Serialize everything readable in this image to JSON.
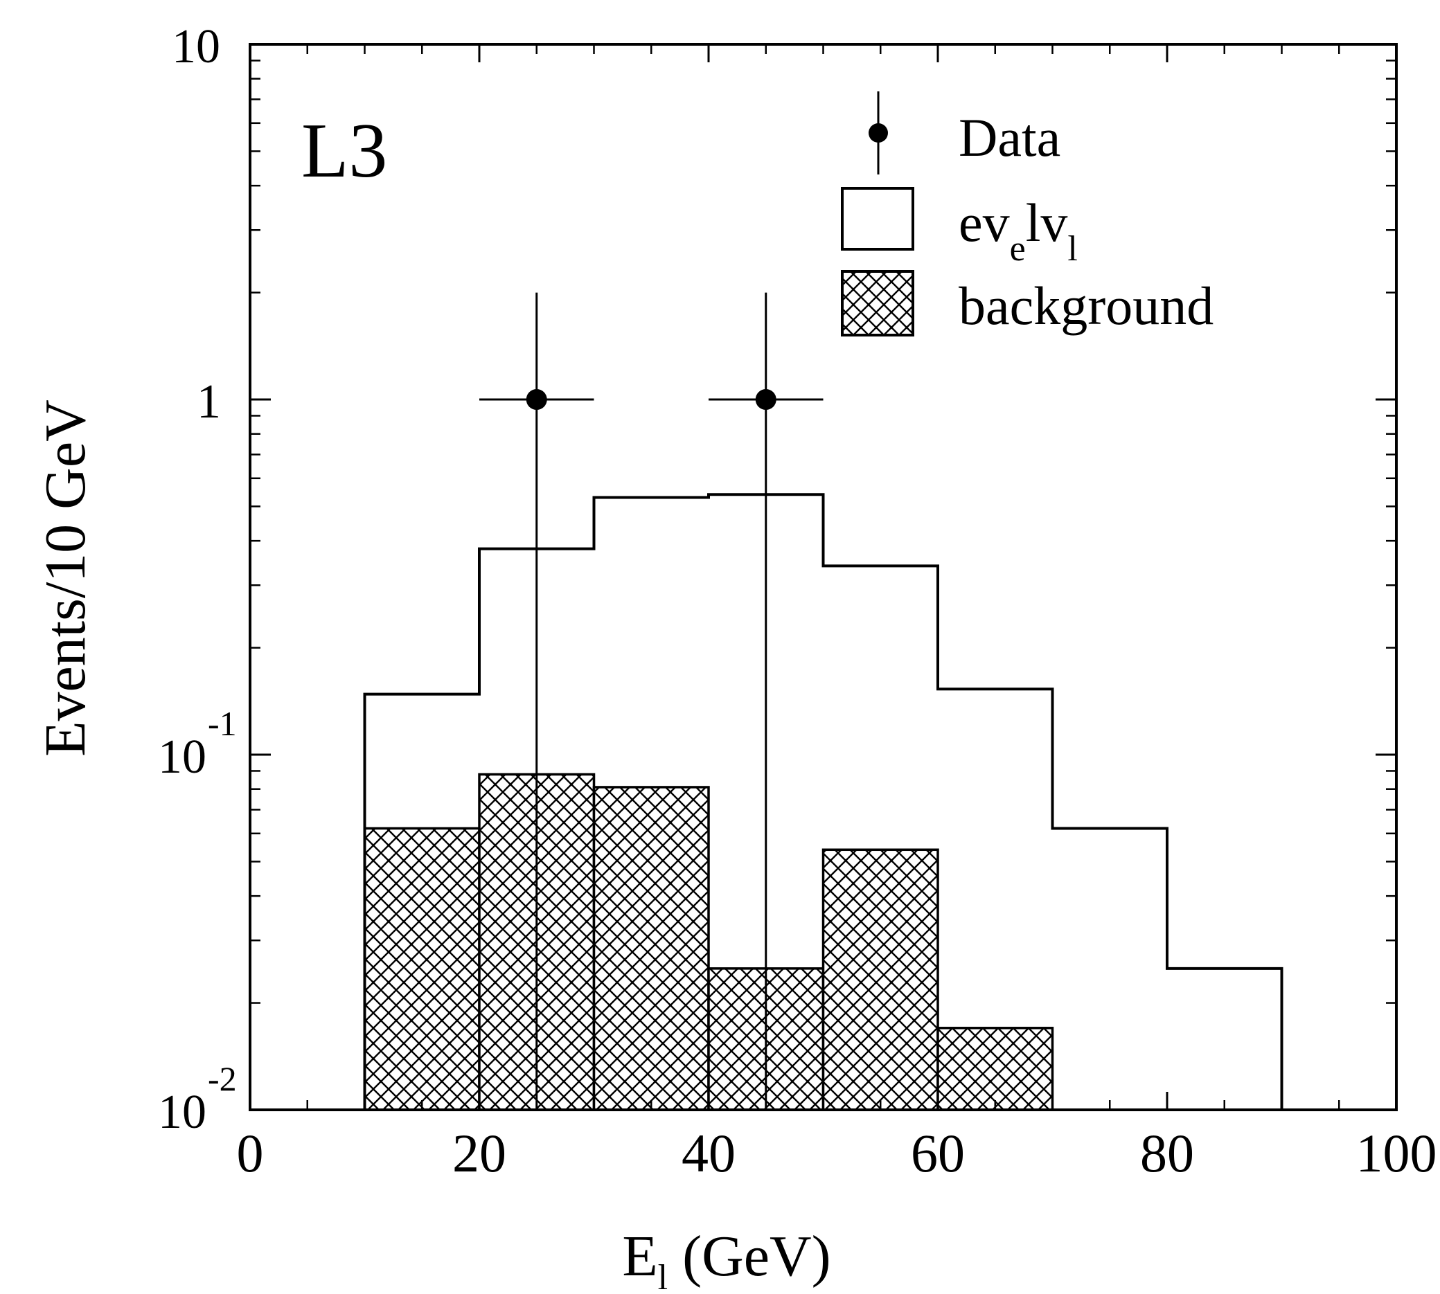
{
  "chart_data": {
    "type": "histogram",
    "title": "L3",
    "xlabel": {
      "base": "E",
      "sub": "l",
      "rest": "(GeV)"
    },
    "ylabel": "Events/10 GeV",
    "xlim": [
      0,
      100
    ],
    "ylim": [
      0.01,
      10
    ],
    "yscale": "log",
    "xticks": [
      0,
      20,
      40,
      60,
      80,
      100
    ],
    "yticks": [
      {
        "value": 10,
        "base": "10",
        "exp": ""
      },
      {
        "value": 1,
        "base": "1",
        "exp": ""
      },
      {
        "value": 0.1,
        "base": "10",
        "exp": "-1"
      },
      {
        "value": 0.01,
        "base": "10",
        "exp": "-2"
      }
    ],
    "bin_edges": [
      10,
      20,
      30,
      40,
      50,
      60,
      70,
      80,
      90
    ],
    "series": [
      {
        "name": "background",
        "kind": "filled-hatched",
        "values": [
          0.062,
          0.088,
          0.081,
          0.025,
          0.054,
          0.017,
          0.01,
          0.01
        ]
      },
      {
        "name": "ev_el v_l",
        "kind": "step-outline",
        "values": [
          0.148,
          0.38,
          0.53,
          0.54,
          0.34,
          0.153,
          0.062,
          0.025
        ]
      },
      {
        "name": "Data",
        "kind": "points-with-errors",
        "points": [
          {
            "x": 25,
            "y": 1.0,
            "xerr": 5,
            "ylow": 0.01,
            "yhigh": 2.0
          },
          {
            "x": 45,
            "y": 1.0,
            "xerr": 5,
            "ylow": 0.01,
            "yhigh": 2.0
          }
        ]
      }
    ],
    "legend": {
      "position": "top-right",
      "items": [
        {
          "name": "Data",
          "symbol": "point"
        },
        {
          "name": "ev_el v_l",
          "symbol": "box",
          "parts": [
            "ev",
            "e",
            "lv",
            "l"
          ]
        },
        {
          "name": "background",
          "symbol": "hatched-box"
        }
      ]
    },
    "grid": false,
    "colors": {
      "line": "#000000",
      "background": "#ffffff"
    }
  }
}
